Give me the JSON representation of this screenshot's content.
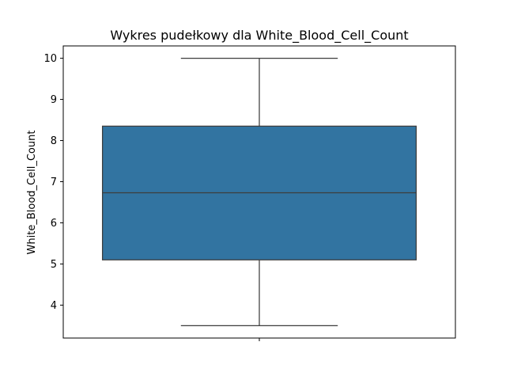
{
  "chart_data": {
    "type": "boxplot",
    "title": "Wykres pudełkowy dla White_Blood_Cell_Count",
    "xlabel": "",
    "ylabel": "White_Blood_Cell_Count",
    "ylim": [
      3.2,
      10.3
    ],
    "yticks": [
      4,
      5,
      6,
      7,
      8,
      9,
      10
    ],
    "grid": false,
    "box": {
      "min": 3.5,
      "q1": 5.1,
      "median": 6.73,
      "q3": 8.35,
      "max": 10.0
    },
    "colors": {
      "box_fill": "#3274a1",
      "line": "#3d3d3d"
    }
  }
}
